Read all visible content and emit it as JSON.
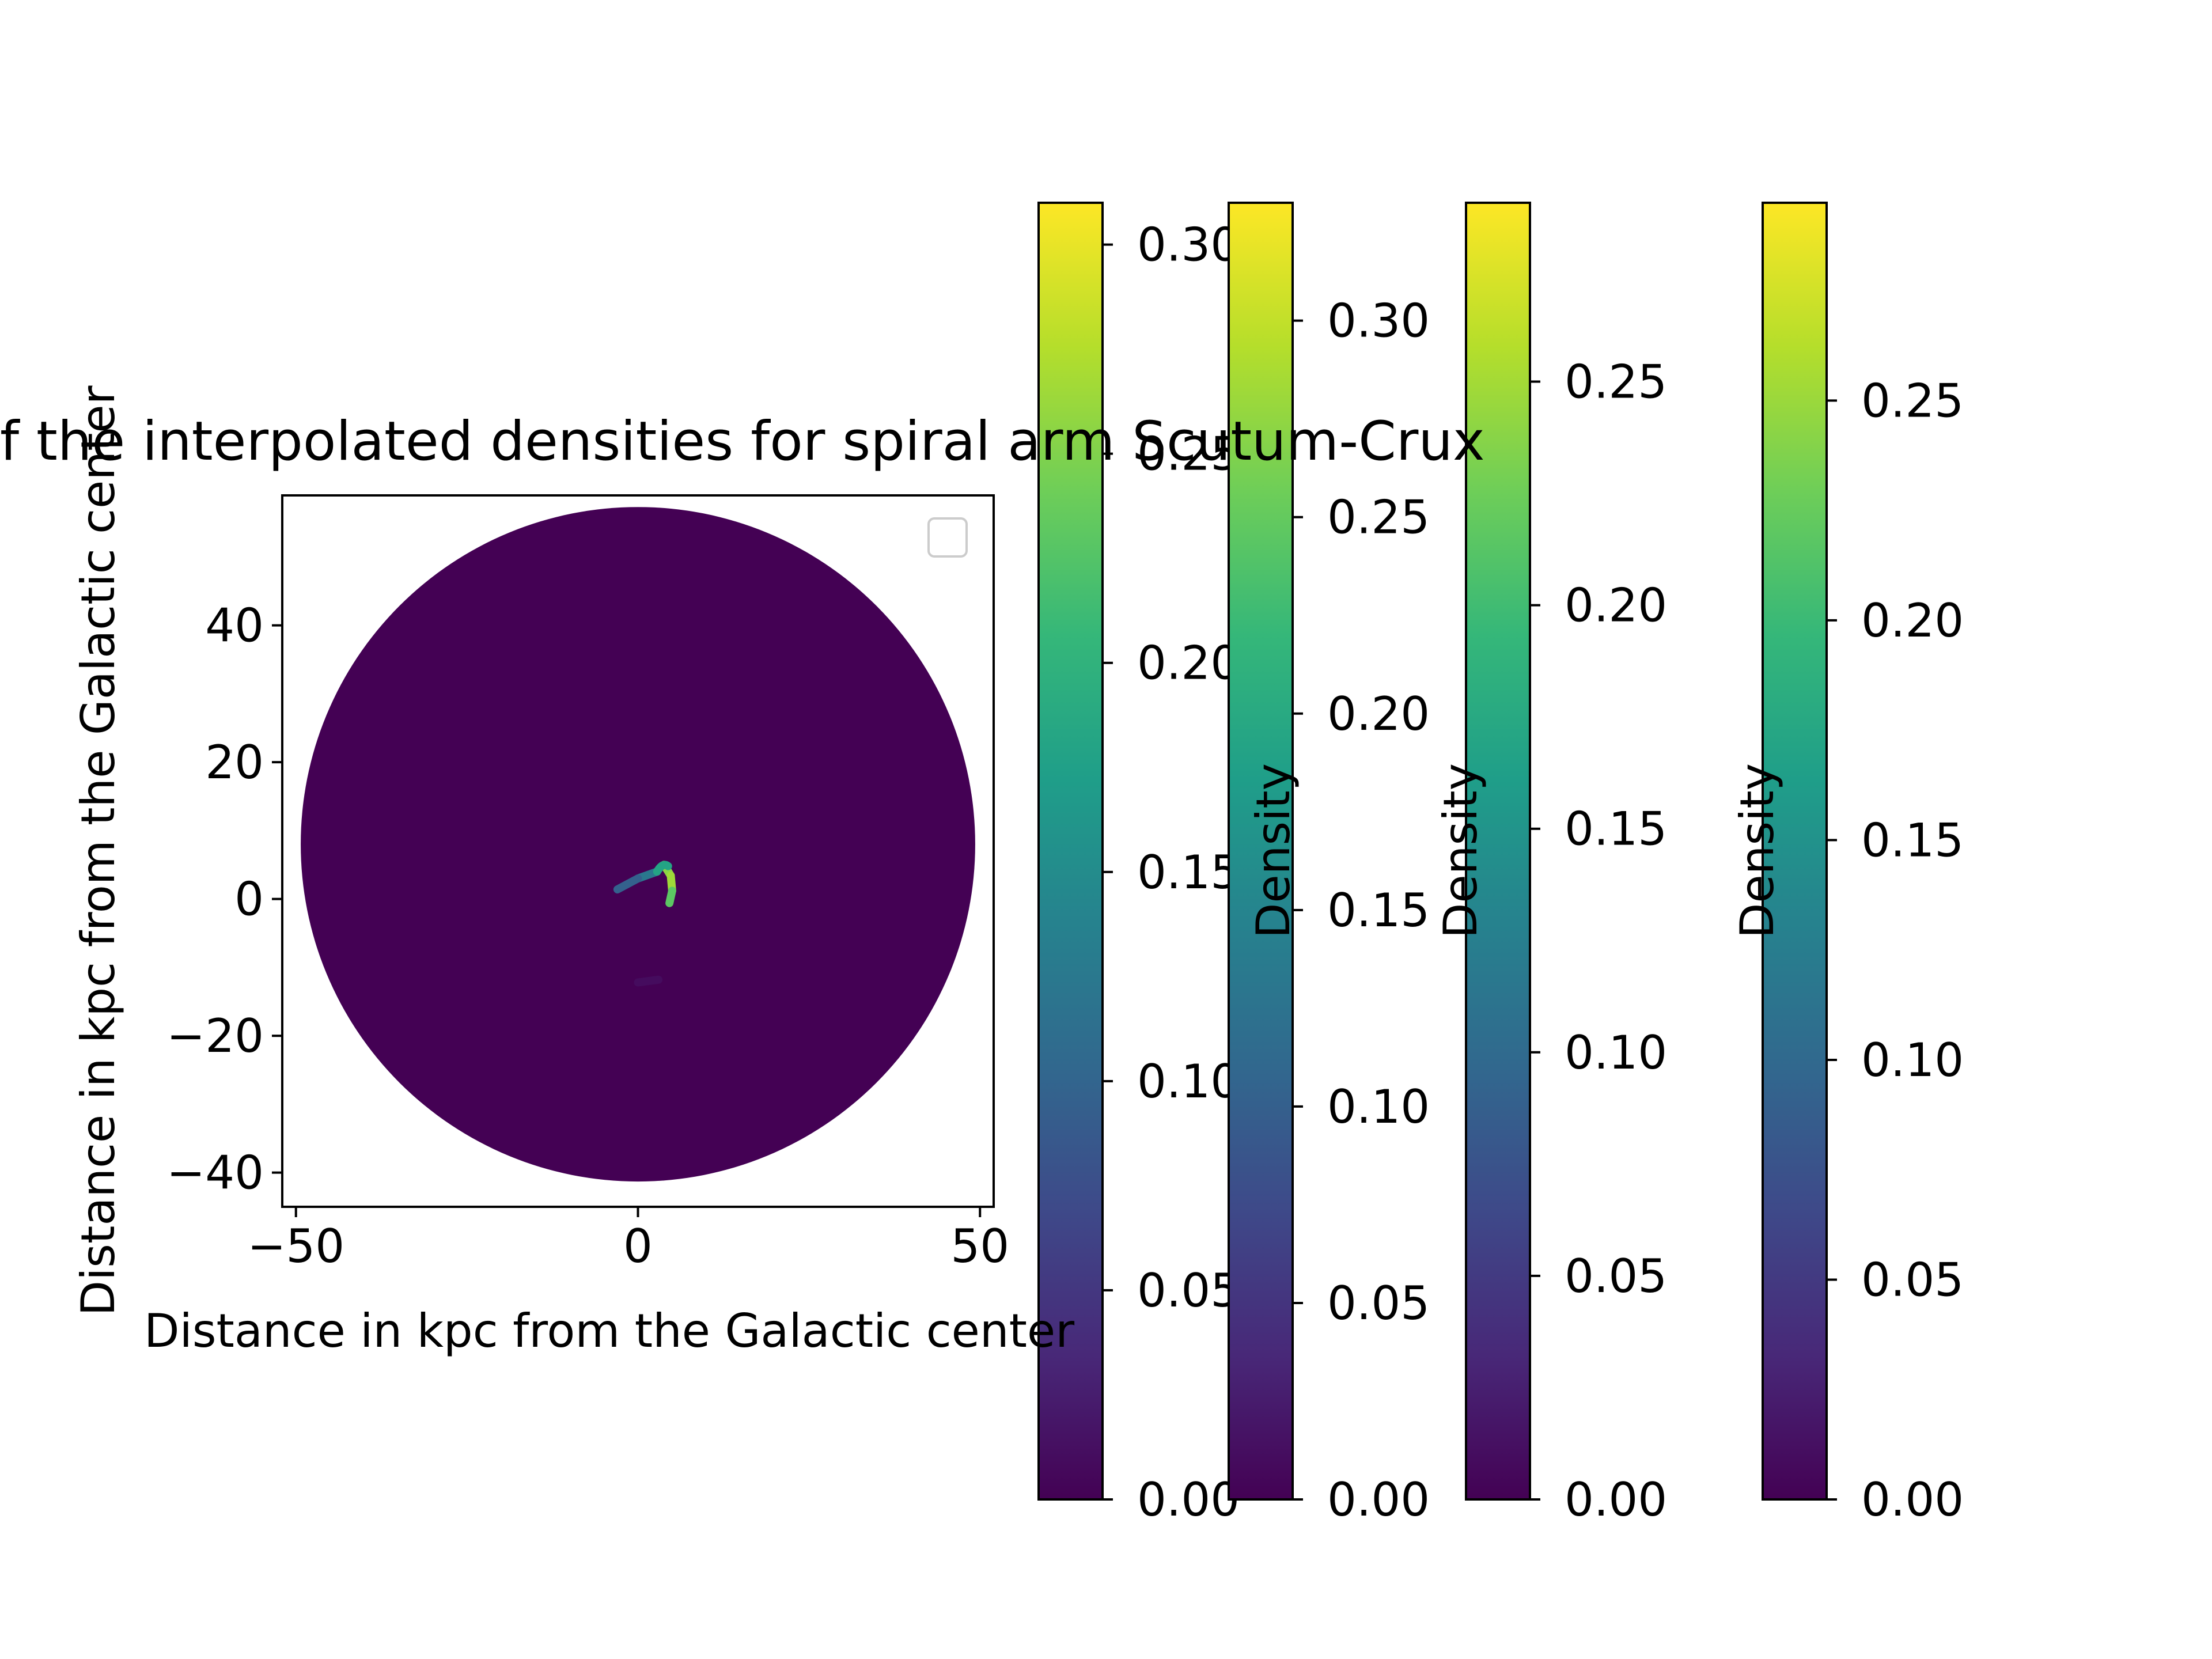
{
  "chart_data": {
    "type": "heatmap",
    "title": "f the interpolated densities for spiral arm Scutum-Crux",
    "xlabel": "Distance in kpc from the Galactic center",
    "ylabel": "Distance in kpc from the Galactic center",
    "xlim": [
      -52,
      52
    ],
    "ylim": [
      -45,
      59
    ],
    "xticks": [
      -50,
      0,
      50
    ],
    "yticks": [
      -40,
      -20,
      0,
      20,
      40
    ],
    "xtick_labels": [
      "−50",
      "0",
      "50"
    ],
    "ytick_labels": [
      "−40",
      "−20",
      "0",
      "20",
      "40"
    ],
    "disk": {
      "center": [
        0,
        8
      ],
      "radius": 49.3,
      "value": 0.0
    },
    "arm_trace": [
      {
        "x": 3.8,
        "y": 5.0,
        "density": 0.24
      },
      {
        "x": 4.8,
        "y": 3.4,
        "density": 0.27
      },
      {
        "x": 5.0,
        "y": 1.2,
        "density": 0.26
      },
      {
        "x": 4.6,
        "y": -0.6,
        "density": 0.2
      },
      {
        "x": 2.8,
        "y": 4.0,
        "density": 0.14
      },
      {
        "x": 0.0,
        "y": 3.0,
        "density": 0.11
      },
      {
        "x": -3.0,
        "y": 1.4,
        "density": 0.08
      },
      {
        "x": -6.0,
        "y": -2.4,
        "density": 0.06
      },
      {
        "x": -6.2,
        "y": -7.0,
        "density": 0.045
      },
      {
        "x": -4.0,
        "y": -10.4,
        "density": 0.03
      },
      {
        "x": 0.0,
        "y": -12.2,
        "density": 0.015
      },
      {
        "x": 3.0,
        "y": -11.8,
        "density": 0.005
      }
    ],
    "legend": {
      "placement": "upper right",
      "entries": []
    },
    "colormap": "viridis",
    "colormap_stops": [
      "#440154",
      "#482878",
      "#3e4989",
      "#31688e",
      "#26828e",
      "#1f9e89",
      "#35b779",
      "#6ece58",
      "#b5de2b",
      "#fde725"
    ],
    "colorbars": [
      {
        "vmin": 0,
        "vmax": 0.31,
        "ticks": [
          "0.00",
          "0.05",
          "0.10",
          "0.15",
          "0.20",
          "0.25",
          "0.30"
        ],
        "label": ""
      },
      {
        "vmin": 0,
        "vmax": 0.33,
        "ticks": [
          "0.00",
          "0.05",
          "0.10",
          "0.15",
          "0.20",
          "0.25",
          "0.30"
        ],
        "label": "Density"
      },
      {
        "vmin": 0,
        "vmax": 0.29,
        "ticks": [
          "0.00",
          "0.05",
          "0.10",
          "0.15",
          "0.20",
          "0.25"
        ],
        "label": "Density"
      },
      {
        "vmin": 0,
        "vmax": 0.295,
        "ticks": [
          "0.00",
          "0.05",
          "0.10",
          "0.15",
          "0.20",
          "0.25"
        ],
        "label": "Density"
      }
    ]
  }
}
